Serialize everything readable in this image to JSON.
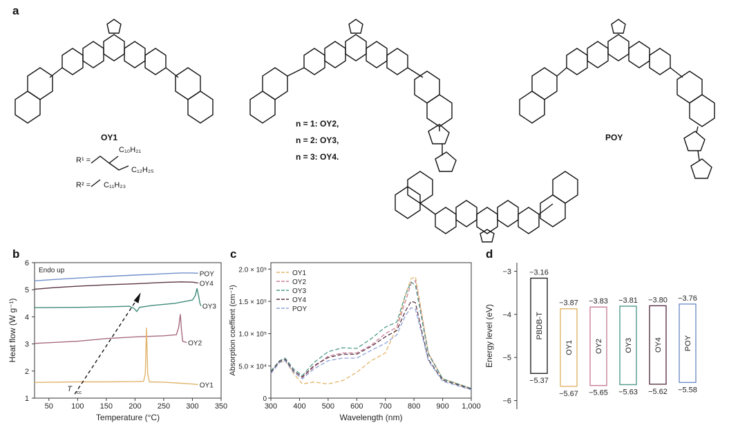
{
  "panels": {
    "a": "a",
    "b": "b",
    "c": "c",
    "d": "d"
  },
  "scheme": {
    "oy1_label": "OY1",
    "series_lines": [
      "n = 1: OY2,",
      "n = 2: OY3,",
      "n = 3: OY4."
    ],
    "poy_label": "POY",
    "r1_label": "R¹ =",
    "r1_chain_top": "C₁₀H₂₁",
    "r1_chain_bottom": "C₁₂H₂₅",
    "r2_label": "R² =",
    "r2_chain": "C₁₁H₂₃"
  },
  "chart_data": [
    {
      "panel": "b",
      "type": "line",
      "annotation": "Endo up",
      "xlabel": "Temperature (°C)",
      "ylabel": "Heat flow (W g⁻¹)",
      "xlim": [
        25,
        350
      ],
      "ylim": [
        1,
        6
      ],
      "xticks": [
        "50",
        "100",
        "150",
        "200",
        "250",
        "300",
        "350"
      ],
      "yticks": [
        "1",
        "2",
        "3",
        "4",
        "5",
        "6"
      ],
      "arrow_label": "T",
      "arrow_label_sub": "cc",
      "series": [
        {
          "name": "POY",
          "color": "#6f8fc9",
          "x": [
            25,
            60,
            100,
            150,
            200,
            250,
            280,
            300,
            310
          ],
          "y": [
            5.33,
            5.38,
            5.43,
            5.49,
            5.54,
            5.59,
            5.62,
            5.62,
            5.61
          ]
        },
        {
          "name": "OY4",
          "color": "#5a3446",
          "x": [
            25,
            60,
            100,
            150,
            200,
            250,
            280,
            300,
            310
          ],
          "y": [
            5.02,
            5.08,
            5.13,
            5.18,
            5.22,
            5.27,
            5.29,
            5.28,
            5.25
          ]
        },
        {
          "name": "OY3",
          "color": "#3f8a78",
          "x": [
            25,
            100,
            150,
            190,
            198,
            203,
            208,
            230,
            270,
            300,
            305,
            308,
            311,
            313,
            315
          ],
          "y": [
            4.34,
            4.35,
            4.37,
            4.39,
            4.32,
            4.2,
            4.35,
            4.42,
            4.5,
            4.62,
            4.78,
            5.05,
            4.75,
            4.5,
            4.4
          ]
        },
        {
          "name": "OY2",
          "color": "#a66a7d",
          "x": [
            25,
            100,
            150,
            200,
            250,
            272,
            276,
            279,
            281,
            283,
            290
          ],
          "y": [
            3.02,
            3.1,
            3.2,
            3.26,
            3.3,
            3.34,
            3.6,
            4.1,
            3.5,
            3.1,
            3.05
          ]
        },
        {
          "name": "OY1",
          "color": "#e0b46a",
          "x": [
            25,
            100,
            150,
            200,
            215,
            218,
            220,
            222,
            225,
            250,
            300,
            310
          ],
          "y": [
            1.58,
            1.6,
            1.6,
            1.61,
            1.62,
            1.9,
            3.6,
            1.9,
            1.6,
            1.59,
            1.52,
            1.5
          ]
        }
      ]
    },
    {
      "panel": "c",
      "type": "line",
      "xlabel": "Wavelength (nm)",
      "ylabel": "Absorption coeffient (cm⁻¹)",
      "xlim": [
        300,
        1000
      ],
      "ylim": [
        0,
        210000
      ],
      "xticks": [
        "300",
        "400",
        "500",
        "600",
        "700",
        "800",
        "900",
        "1,000"
      ],
      "yticks": [
        "0",
        "5.0 × 10⁴",
        "1.0 × 10⁵",
        "1.5 × 10⁵",
        "2.0 × 10⁵"
      ],
      "series": [
        {
          "name": "OY1",
          "color": "#e0b46a",
          "x": [
            300,
            330,
            350,
            380,
            410,
            450,
            500,
            550,
            600,
            650,
            700,
            740,
            770,
            790,
            805,
            820,
            850,
            900,
            1000
          ],
          "y": [
            40000,
            55000,
            58000,
            38000,
            22000,
            25000,
            22000,
            27000,
            40000,
            58000,
            70000,
            110000,
            160000,
            185000,
            188000,
            150000,
            70000,
            30000,
            15000
          ]
        },
        {
          "name": "OY2",
          "color": "#c77f96",
          "x": [
            300,
            330,
            350,
            380,
            410,
            450,
            500,
            550,
            600,
            650,
            700,
            740,
            770,
            790,
            805,
            820,
            850,
            900,
            1000
          ],
          "y": [
            40000,
            57000,
            60000,
            42000,
            32000,
            48000,
            65000,
            70000,
            70000,
            82000,
            100000,
            110000,
            150000,
            178000,
            182000,
            145000,
            70000,
            30000,
            15000
          ]
        },
        {
          "name": "OY3",
          "color": "#4f9a89",
          "x": [
            300,
            330,
            350,
            380,
            410,
            450,
            500,
            550,
            600,
            650,
            700,
            740,
            770,
            790,
            805,
            820,
            850,
            900,
            1000
          ],
          "y": [
            42000,
            58000,
            62000,
            45000,
            35000,
            55000,
            72000,
            78000,
            77000,
            92000,
            110000,
            118000,
            160000,
            180000,
            175000,
            140000,
            68000,
            30000,
            15000
          ]
        },
        {
          "name": "OY4",
          "color": "#5a3446",
          "x": [
            300,
            330,
            350,
            380,
            410,
            450,
            500,
            550,
            600,
            650,
            700,
            740,
            770,
            790,
            805,
            820,
            850,
            900,
            1000
          ],
          "y": [
            40000,
            57000,
            60000,
            42000,
            33000,
            50000,
            63000,
            68000,
            68000,
            80000,
            95000,
            105000,
            135000,
            150000,
            148000,
            118000,
            60000,
            28000,
            14000
          ]
        },
        {
          "name": "POY",
          "color": "#8ea3d6",
          "x": [
            300,
            330,
            350,
            380,
            410,
            450,
            500,
            550,
            600,
            650,
            700,
            740,
            770,
            790,
            805,
            820,
            850,
            900,
            1000
          ],
          "y": [
            38000,
            55000,
            58000,
            40000,
            30000,
            45000,
            58000,
            62000,
            62000,
            74000,
            85000,
            98000,
            128000,
            140000,
            138000,
            112000,
            58000,
            26000,
            13000
          ]
        }
      ]
    },
    {
      "panel": "d",
      "type": "bar",
      "ylabel": "Energy level (eV)",
      "ylim": [
        -6.2,
        -2.8
      ],
      "yticks": [
        "-3",
        "-4",
        "-5",
        "-6"
      ],
      "items": [
        {
          "name": "PBDB-T",
          "lumo": -3.16,
          "homo": -5.37,
          "lumo_label": "−3.16",
          "homo_label": "−5.37",
          "color": "#222222"
        },
        {
          "name": "OY1",
          "lumo": -3.87,
          "homo": -5.67,
          "lumo_label": "−3.87",
          "homo_label": "−5.67",
          "color": "#e0b46a"
        },
        {
          "name": "OY2",
          "lumo": -3.83,
          "homo": -5.65,
          "lumo_label": "−3.83",
          "homo_label": "−5.65",
          "color": "#c77f96"
        },
        {
          "name": "OY3",
          "lumo": -3.81,
          "homo": -5.63,
          "lumo_label": "−3.81",
          "homo_label": "−5.63",
          "color": "#4f9a89"
        },
        {
          "name": "OY4",
          "lumo": -3.8,
          "homo": -5.62,
          "lumo_label": "−3.80",
          "homo_label": "−5.62",
          "color": "#5a3446"
        },
        {
          "name": "POY",
          "lumo": -3.76,
          "homo": -5.58,
          "lumo_label": "−3.76",
          "homo_label": "−5.58",
          "color": "#6f8fc9"
        }
      ]
    }
  ]
}
